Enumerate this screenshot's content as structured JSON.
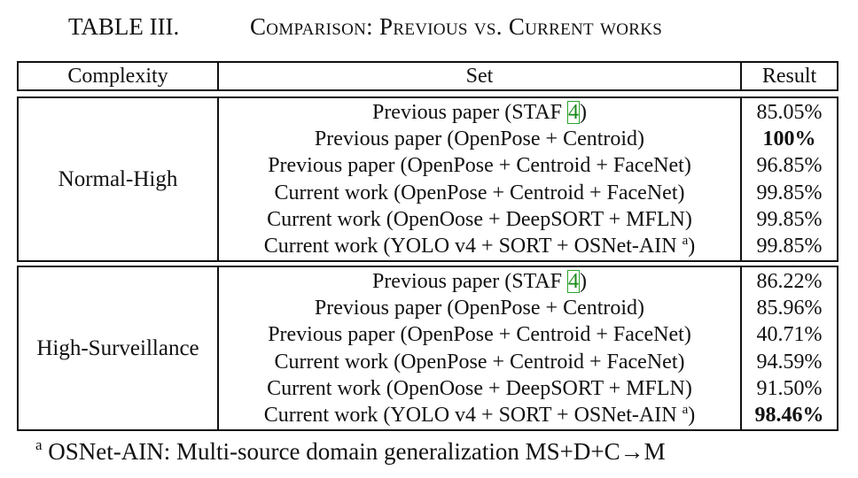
{
  "caption": {
    "label": "TABLE III.",
    "title": "Comparison: Previous vs. Current works"
  },
  "columns": [
    "Complexity",
    "Set",
    "Result"
  ],
  "groups": [
    {
      "complexity": "Normal-High",
      "rows": [
        {
          "prefix": "Previous paper (STAF ",
          "cite": "4",
          "suffix": ")",
          "note": "",
          "result": "85.05%",
          "bold": false
        },
        {
          "prefix": "Previous paper (OpenPose + Centroid)",
          "cite": "",
          "suffix": "",
          "note": "",
          "result": "100%",
          "bold": true
        },
        {
          "prefix": "Previous paper (OpenPose + Centroid + FaceNet)",
          "cite": "",
          "suffix": "",
          "note": "",
          "result": "96.85%",
          "bold": false
        },
        {
          "prefix": "Current work (OpenPose + Centroid + FaceNet)",
          "cite": "",
          "suffix": "",
          "note": "",
          "result": "99.85%",
          "bold": false
        },
        {
          "prefix": "Current work (OpenOose + DeepSORT + MFLN)",
          "cite": "",
          "suffix": "",
          "note": "",
          "result": "99.85%",
          "bold": false
        },
        {
          "prefix": "Current work (YOLO v4 + SORT + OSNet-AIN ",
          "cite": "",
          "suffix": ")",
          "note": "a",
          "result": "99.85%",
          "bold": false
        }
      ]
    },
    {
      "complexity": "High-Surveillance",
      "rows": [
        {
          "prefix": "Previous paper (STAF ",
          "cite": "4",
          "suffix": ")",
          "note": "",
          "result": "86.22%",
          "bold": false
        },
        {
          "prefix": "Previous paper (OpenPose + Centroid)",
          "cite": "",
          "suffix": "",
          "note": "",
          "result": "85.96%",
          "bold": false
        },
        {
          "prefix": "Previous paper (OpenPose + Centroid + FaceNet)",
          "cite": "",
          "suffix": "",
          "note": "",
          "result": "40.71%",
          "bold": false
        },
        {
          "prefix": "Current work (OpenPose + Centroid + FaceNet)",
          "cite": "",
          "suffix": "",
          "note": "",
          "result": "94.59%",
          "bold": false
        },
        {
          "prefix": "Current work (OpenOose + DeepSORT + MFLN)",
          "cite": "",
          "suffix": "",
          "note": "",
          "result": "91.50%",
          "bold": false
        },
        {
          "prefix": "Current work (YOLO v4 + SORT + OSNet-AIN ",
          "cite": "",
          "suffix": ")",
          "note": "a",
          "result": "98.46%",
          "bold": true
        }
      ]
    }
  ],
  "footnote": {
    "marker": "a",
    "text": " OSNet-AIN: Multi-source domain generalization MS+D+C→M"
  },
  "colors": {
    "citation": "#1a8a1a",
    "text": "#111111"
  }
}
